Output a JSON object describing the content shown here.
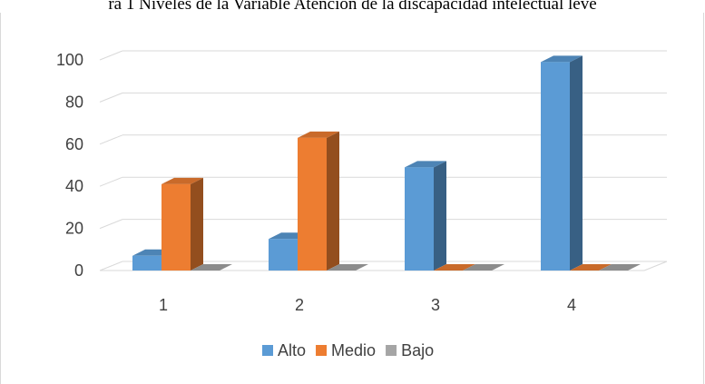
{
  "caption": "ra 1 Niveles de la Variable Atención de la discapacidad intelectual leve",
  "chart_data": {
    "type": "bar",
    "title": "",
    "xlabel": "",
    "ylabel": "",
    "categories": [
      "1",
      "2",
      "3",
      "4"
    ],
    "series": [
      {
        "name": "Alto",
        "values": [
          7,
          15,
          49,
          99
        ],
        "color": "#5b9bd5"
      },
      {
        "name": "Medio",
        "values": [
          41,
          63,
          0,
          0
        ],
        "color": "#ed7d31"
      },
      {
        "name": "Bajo",
        "values": [
          0,
          0,
          0,
          0
        ],
        "color": "#a5a5a5"
      }
    ],
    "ylim": [
      0,
      100
    ],
    "yticks": [
      "0",
      "20",
      "40",
      "60",
      "80",
      "100"
    ],
    "grid": true,
    "legend": "bottom",
    "style": "3d-clustered-column"
  }
}
